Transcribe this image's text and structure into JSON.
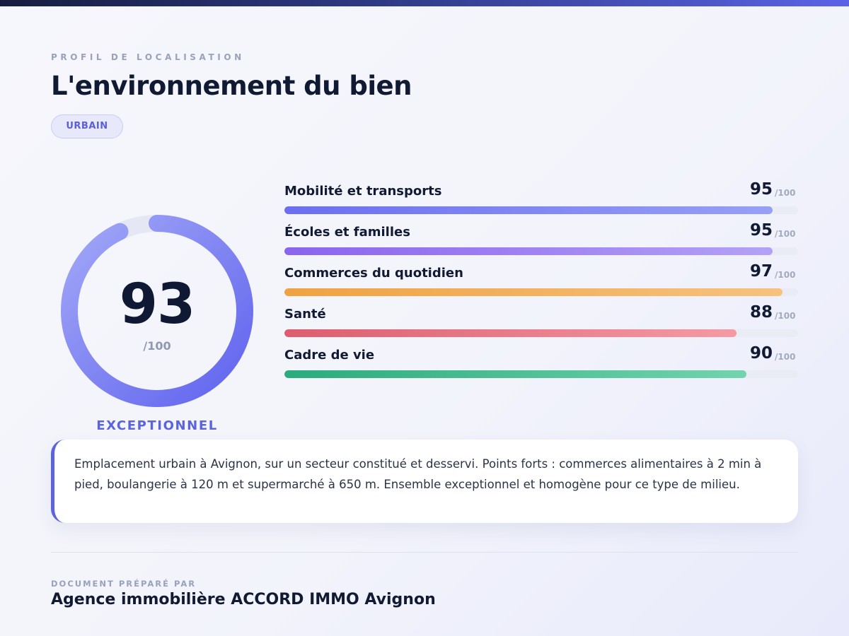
{
  "header": {
    "eyebrow": "PROFIL DE LOCALISATION",
    "title": "L'environnement du bien",
    "badge": "URBAIN"
  },
  "overall": {
    "score": 93,
    "score_text": "93",
    "max_text": "/100",
    "rating": "EXCEPTIONNEL",
    "gauge_color": "#6b6ff0"
  },
  "scores": [
    {
      "label": "Mobilité et transports",
      "value": 95,
      "value_text": "95",
      "max_text": "/100",
      "color_from": "#6b6ef0",
      "color_to": "#97a0f5"
    },
    {
      "label": "Écoles et familles",
      "value": 95,
      "value_text": "95",
      "max_text": "/100",
      "color_from": "#8b63ef",
      "color_to": "#b4a1f7"
    },
    {
      "label": "Commerces du quotidien",
      "value": 97,
      "value_text": "97",
      "max_text": "/100",
      "color_from": "#efa241",
      "color_to": "#f7c27d"
    },
    {
      "label": "Santé",
      "value": 88,
      "value_text": "88",
      "max_text": "/100",
      "color_from": "#dd5d6f",
      "color_to": "#f59aa3"
    },
    {
      "label": "Cadre de vie",
      "value": 90,
      "value_text": "90",
      "max_text": "/100",
      "color_from": "#2bab7c",
      "color_to": "#71d4ad"
    }
  ],
  "summary": {
    "text": "Emplacement urbain à Avignon, sur un secteur constitué et desservi. Points forts : commerces alimentaires à 2 min à pied, boulangerie à 120 m et supermarché à 650 m. Ensemble exceptionnel et homogène pour ce type de milieu."
  },
  "footer": {
    "label": "DOCUMENT PRÉPARÉ PAR",
    "agency": "Agence immobilière ACCORD IMMO Avignon"
  }
}
